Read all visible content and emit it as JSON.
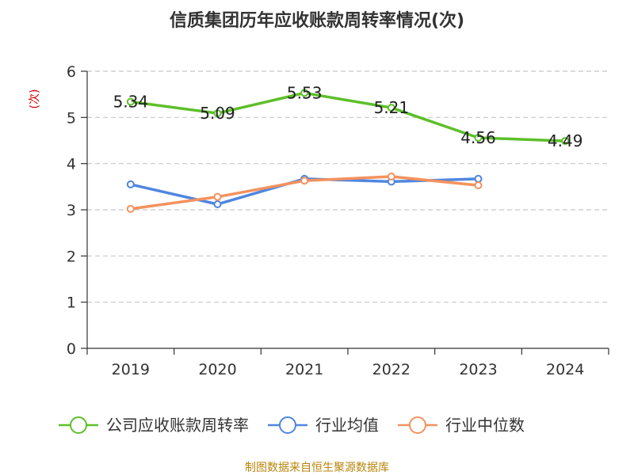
{
  "title": "信质集团历年应收账款周转率情况(次)",
  "source": "制图数据来自恒生聚源数据库",
  "chart_data": {
    "type": "line",
    "title": "信质集团历年应收账款周转率情况(次)",
    "ylabel": "(次)",
    "xlabel": "",
    "categories": [
      "2019",
      "2020",
      "2021",
      "2022",
      "2023",
      "2024"
    ],
    "ylim": [
      0,
      6
    ],
    "yticks": [
      0,
      1,
      2,
      3,
      4,
      5,
      6
    ],
    "grid": true,
    "legend_position": "bottom",
    "series": [
      {
        "name": "公司应收账款周转率",
        "color": "#5dbf2a",
        "values": [
          5.34,
          5.09,
          5.53,
          5.21,
          4.56,
          4.49
        ],
        "labels": [
          "5.34",
          "5.09",
          "5.53",
          "5.21",
          "4.56",
          "4.49"
        ]
      },
      {
        "name": "行业均值",
        "color": "#4f86e0",
        "values": [
          3.55,
          3.12,
          3.67,
          3.61,
          3.67,
          null
        ]
      },
      {
        "name": "行业中位数",
        "color": "#f4925e",
        "values": [
          3.02,
          3.28,
          3.63,
          3.72,
          3.53,
          null
        ]
      }
    ]
  }
}
